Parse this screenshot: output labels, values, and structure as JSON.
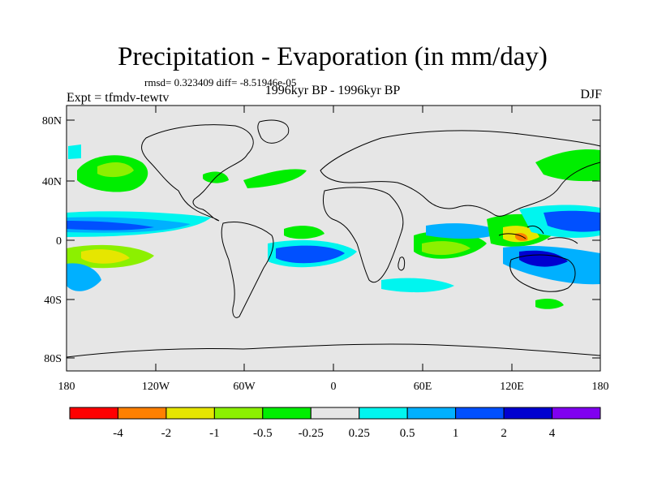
{
  "header": {
    "title": "Precipitation - Evaporation (in mm/day)",
    "stats": "rmsd= 0.323409 diff= -8.51946e-05",
    "period": "1996kyr BP - 1996kyr BP",
    "experiment": "Expt = tfmdv-tewtv",
    "season": "DJF"
  },
  "axes": {
    "lat_labels": [
      "80N",
      "40N",
      "0",
      "40S",
      "80S"
    ],
    "lon_labels": [
      "180",
      "120W",
      "60W",
      "0",
      "60E",
      "120E",
      "180"
    ]
  },
  "colorbar": {
    "colors": [
      "#ff0000",
      "#ff8000",
      "#e6e600",
      "#8cf000",
      "#00ee00",
      "#e6e6e6",
      "#00f5ef",
      "#00b0ff",
      "#0050ff",
      "#0000d0",
      "#8000f0"
    ],
    "labels": [
      "-4",
      "-2",
      "-1",
      "-0.5",
      "-0.25",
      "0.25",
      "0.5",
      "1",
      "2",
      "4"
    ]
  },
  "colors": {
    "map_background": "#e6e6e6",
    "coastline": "#000000"
  }
}
